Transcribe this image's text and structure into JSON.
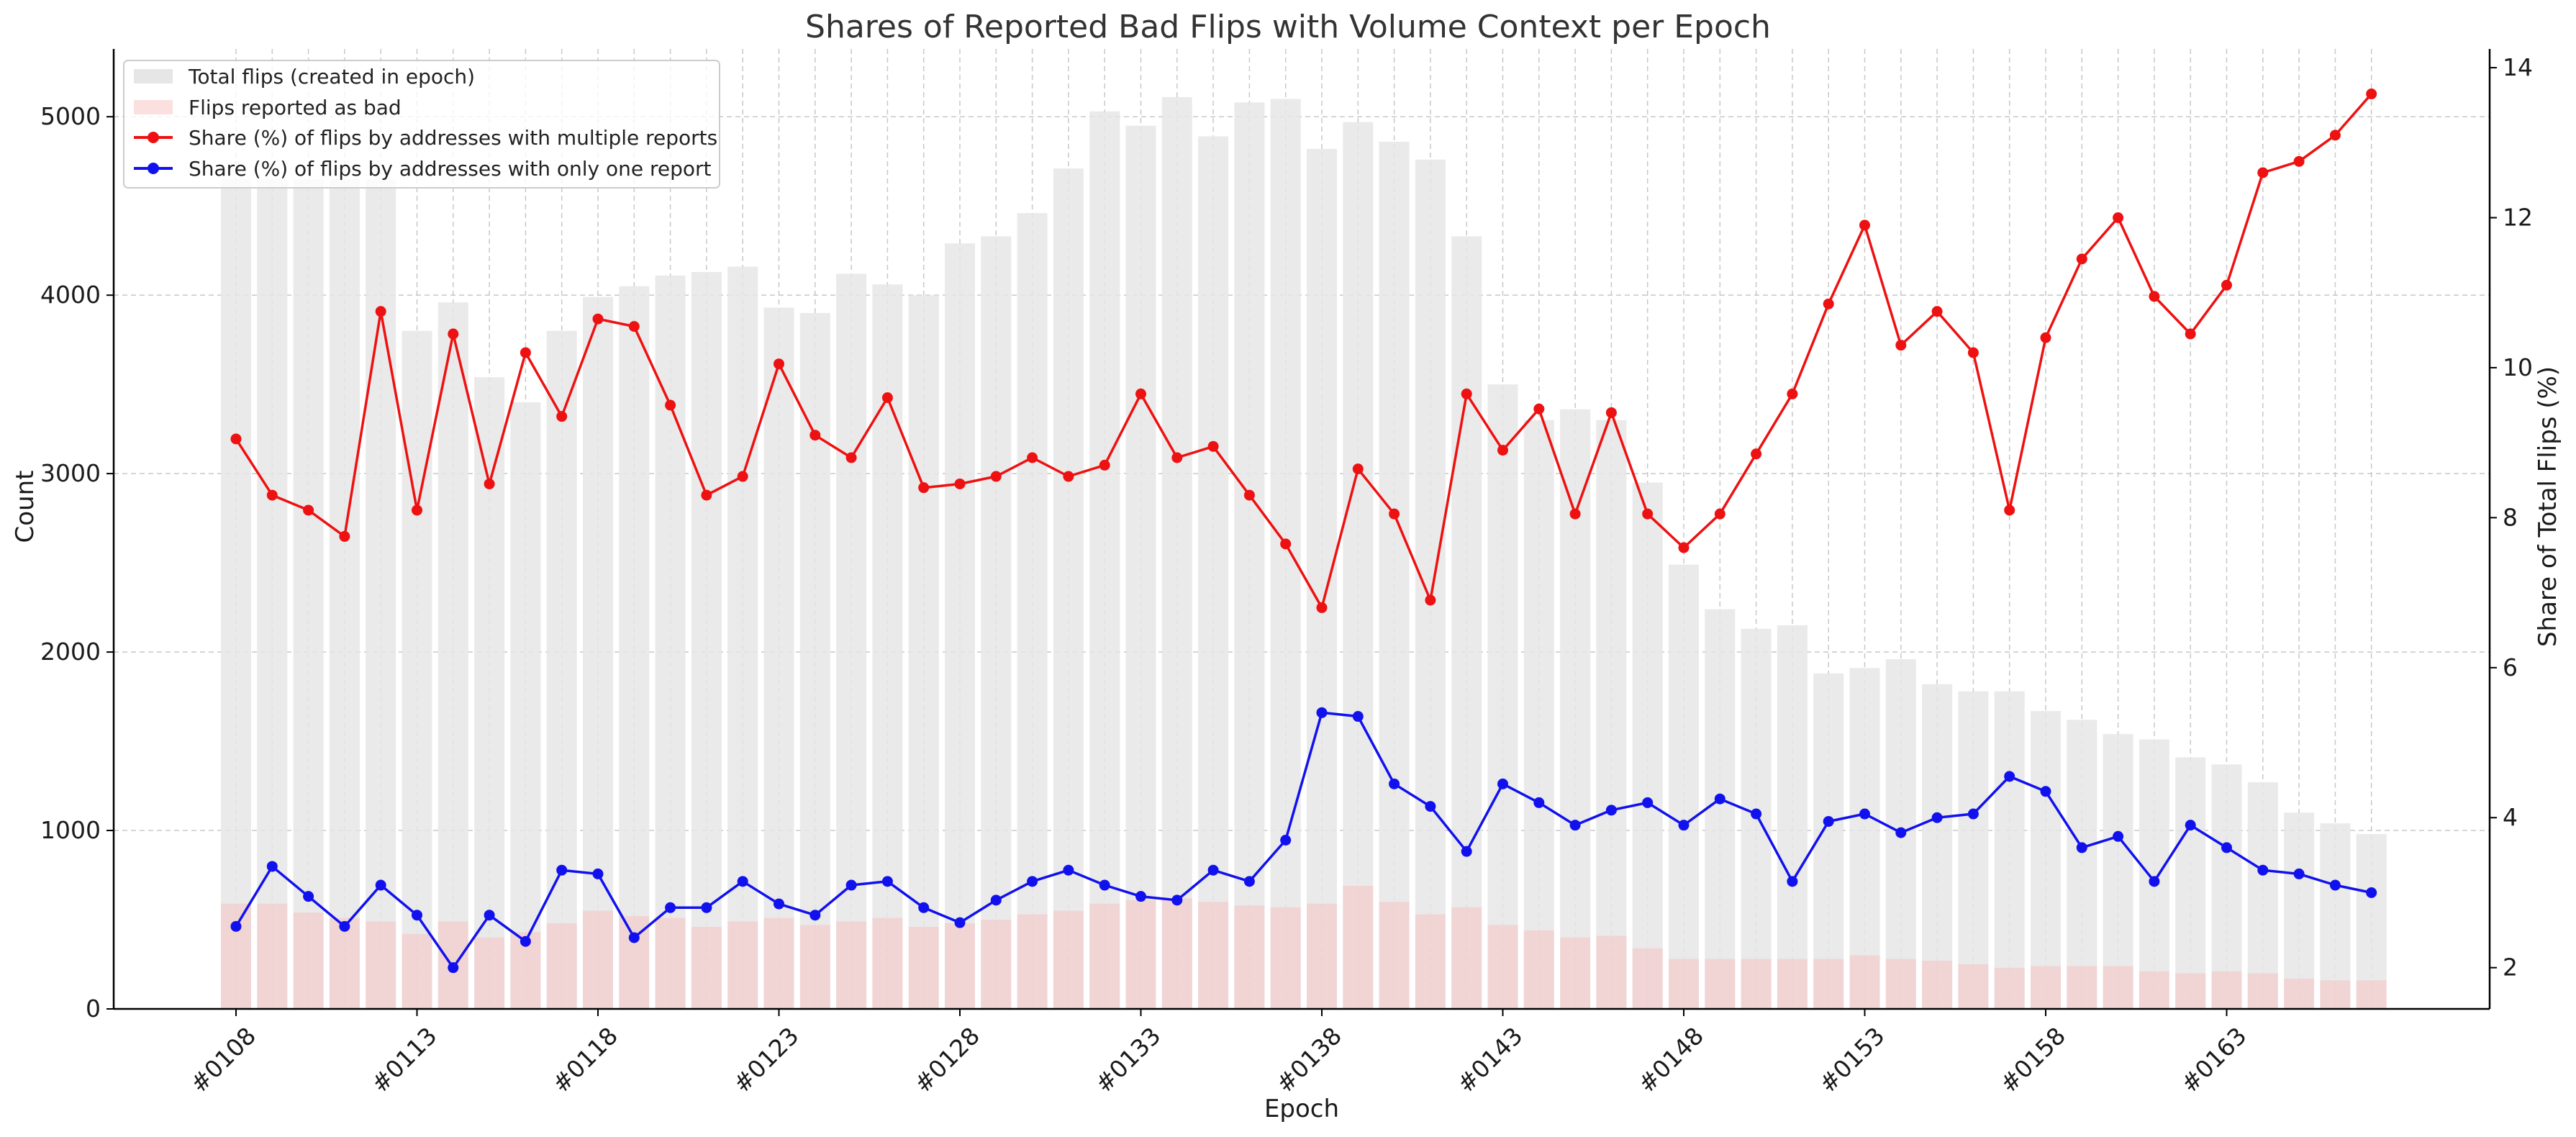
{
  "chart_data": {
    "type": "bar",
    "title": "Shares of Reported Bad Flips with Volume Context per Epoch",
    "xlabel": "Epoch",
    "ylabel": "Count",
    "y2label": "Share of Total Flips (%)",
    "ylim": [
      0,
      5380
    ],
    "y2lim": [
      1.45,
      14.25
    ],
    "yticks": [
      0,
      1000,
      2000,
      3000,
      4000,
      5000
    ],
    "y2ticks": [
      2,
      4,
      6,
      8,
      10,
      12,
      14
    ],
    "grid": true,
    "legend_position": "top-left",
    "epochs": [
      108,
      109,
      110,
      111,
      112,
      113,
      114,
      115,
      116,
      117,
      118,
      119,
      120,
      121,
      122,
      123,
      124,
      125,
      126,
      127,
      128,
      129,
      130,
      131,
      132,
      133,
      134,
      135,
      136,
      137,
      138,
      139,
      140,
      141,
      142,
      143,
      144,
      145,
      146,
      147,
      148,
      149,
      150,
      151,
      152,
      153,
      154,
      155,
      156,
      157,
      158,
      159,
      160,
      161,
      162,
      163,
      164,
      165,
      166,
      167
    ],
    "tick_labels": [
      "#0108",
      "#0113",
      "#0118",
      "#0123",
      "#0128",
      "#0133",
      "#0138",
      "#0143",
      "#0148",
      "#0153",
      "#0158",
      "#0163"
    ],
    "series": [
      {
        "name": "Total flips (created in epoch)",
        "kind": "bar",
        "axis": "left",
        "color": "#e6e6e6",
        "values": [
          4650,
          4650,
          4650,
          4650,
          4650,
          3800,
          3960,
          3540,
          3400,
          3800,
          3990,
          4050,
          4110,
          4130,
          4160,
          3930,
          3900,
          4120,
          4060,
          4000,
          4290,
          4330,
          4460,
          4710,
          5030,
          4950,
          5110,
          4890,
          5080,
          5100,
          4820,
          4970,
          4860,
          4760,
          4330,
          3500,
          3300,
          3360,
          3300,
          2950,
          2490,
          2240,
          2130,
          2150,
          1880,
          1910,
          1960,
          1820,
          1780,
          1780,
          1670,
          1620,
          1540,
          1510,
          1410,
          1370,
          1270,
          1100,
          1040,
          980
        ]
      },
      {
        "name": "Flips reported as bad",
        "kind": "bar",
        "axis": "left",
        "color": "#f5c6c6",
        "values": [
          590,
          590,
          540,
          510,
          490,
          420,
          490,
          400,
          430,
          480,
          550,
          520,
          510,
          460,
          490,
          510,
          470,
          490,
          510,
          460,
          480,
          500,
          530,
          550,
          590,
          610,
          620,
          600,
          580,
          570,
          590,
          690,
          600,
          530,
          570,
          470,
          440,
          400,
          410,
          340,
          280,
          280,
          280,
          280,
          280,
          300,
          280,
          270,
          250,
          230,
          240,
          240,
          240,
          210,
          200,
          210,
          200,
          170,
          160,
          160
        ]
      },
      {
        "name": "Share (%) of flips by addresses with multiple reports",
        "kind": "line",
        "axis": "right",
        "color": "#ee1111",
        "values": [
          9.05,
          8.3,
          8.1,
          7.75,
          10.75,
          8.1,
          10.45,
          8.45,
          10.2,
          9.35,
          10.65,
          10.55,
          9.5,
          8.3,
          8.55,
          10.05,
          9.1,
          8.8,
          9.6,
          8.4,
          8.45,
          8.55,
          8.8,
          8.55,
          8.7,
          9.65,
          8.8,
          8.95,
          8.3,
          7.65,
          6.8,
          8.65,
          8.05,
          6.9,
          9.65,
          8.9,
          9.45,
          8.05,
          9.4,
          8.05,
          7.6,
          8.05,
          8.85,
          9.65,
          10.85,
          11.9,
          10.3,
          10.75,
          10.2,
          8.1,
          10.4,
          11.45,
          12.0,
          10.95,
          10.45,
          11.1,
          12.6,
          12.75,
          13.1,
          13.65
        ]
      },
      {
        "name": "Share (%) of flips by addresses with only one report",
        "kind": "line",
        "axis": "right",
        "color": "#1111ee",
        "values": [
          2.55,
          3.35,
          2.95,
          2.55,
          3.1,
          2.7,
          2.0,
          2.7,
          2.35,
          3.3,
          3.25,
          2.4,
          2.8,
          2.8,
          3.15,
          2.85,
          2.7,
          3.1,
          3.15,
          2.8,
          2.6,
          2.9,
          3.15,
          3.3,
          3.1,
          2.95,
          2.9,
          3.3,
          3.15,
          3.7,
          5.4,
          5.35,
          4.45,
          4.15,
          3.55,
          4.45,
          4.2,
          3.9,
          4.1,
          4.2,
          3.9,
          4.25,
          4.05,
          3.15,
          3.95,
          4.05,
          3.8,
          4.0,
          4.05,
          4.55,
          4.35,
          3.6,
          3.75,
          3.15,
          3.9,
          3.6,
          3.3,
          3.25,
          3.1,
          3.0
        ]
      }
    ]
  }
}
